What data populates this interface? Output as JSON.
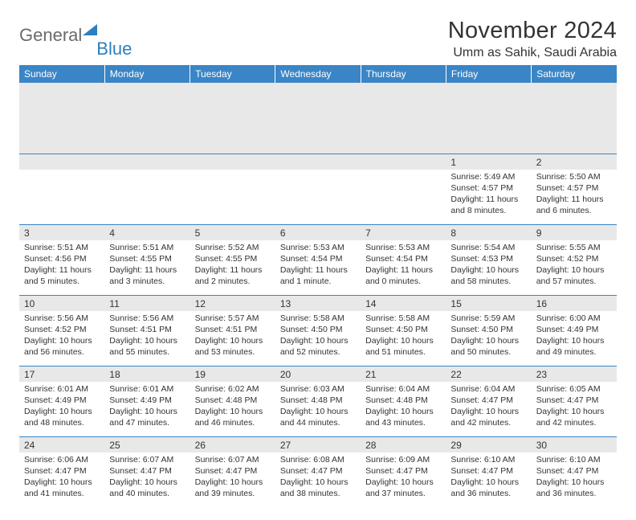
{
  "logo": {
    "word1": "General",
    "word2": "Blue"
  },
  "title": "November 2024",
  "location": "Umm as Sahik, Saudi Arabia",
  "weekdays": [
    "Sunday",
    "Monday",
    "Tuesday",
    "Wednesday",
    "Thursday",
    "Friday",
    "Saturday"
  ],
  "colors": {
    "header_bg": "#3a85c6",
    "header_fg": "#ffffff",
    "daynum_bg": "#e8e8e8",
    "rule": "#3a85c6",
    "text": "#333333",
    "logo_gray": "#6b6b6b",
    "logo_blue": "#2c7fc0"
  },
  "typography": {
    "title_fontsize": 29,
    "location_fontsize": 16,
    "weekday_fontsize": 12,
    "daynum_fontsize": 12,
    "body_fontsize": 10.5
  },
  "grid": {
    "leading_blanks": 5,
    "rows": 5,
    "cols": 7
  },
  "days": [
    {
      "n": 1,
      "sunrise": "5:49 AM",
      "sunset": "4:57 PM",
      "daylight": "11 hours and 8 minutes."
    },
    {
      "n": 2,
      "sunrise": "5:50 AM",
      "sunset": "4:57 PM",
      "daylight": "11 hours and 6 minutes."
    },
    {
      "n": 3,
      "sunrise": "5:51 AM",
      "sunset": "4:56 PM",
      "daylight": "11 hours and 5 minutes."
    },
    {
      "n": 4,
      "sunrise": "5:51 AM",
      "sunset": "4:55 PM",
      "daylight": "11 hours and 3 minutes."
    },
    {
      "n": 5,
      "sunrise": "5:52 AM",
      "sunset": "4:55 PM",
      "daylight": "11 hours and 2 minutes."
    },
    {
      "n": 6,
      "sunrise": "5:53 AM",
      "sunset": "4:54 PM",
      "daylight": "11 hours and 1 minute."
    },
    {
      "n": 7,
      "sunrise": "5:53 AM",
      "sunset": "4:54 PM",
      "daylight": "11 hours and 0 minutes."
    },
    {
      "n": 8,
      "sunrise": "5:54 AM",
      "sunset": "4:53 PM",
      "daylight": "10 hours and 58 minutes."
    },
    {
      "n": 9,
      "sunrise": "5:55 AM",
      "sunset": "4:52 PM",
      "daylight": "10 hours and 57 minutes."
    },
    {
      "n": 10,
      "sunrise": "5:56 AM",
      "sunset": "4:52 PM",
      "daylight": "10 hours and 56 minutes."
    },
    {
      "n": 11,
      "sunrise": "5:56 AM",
      "sunset": "4:51 PM",
      "daylight": "10 hours and 55 minutes."
    },
    {
      "n": 12,
      "sunrise": "5:57 AM",
      "sunset": "4:51 PM",
      "daylight": "10 hours and 53 minutes."
    },
    {
      "n": 13,
      "sunrise": "5:58 AM",
      "sunset": "4:50 PM",
      "daylight": "10 hours and 52 minutes."
    },
    {
      "n": 14,
      "sunrise": "5:58 AM",
      "sunset": "4:50 PM",
      "daylight": "10 hours and 51 minutes."
    },
    {
      "n": 15,
      "sunrise": "5:59 AM",
      "sunset": "4:50 PM",
      "daylight": "10 hours and 50 minutes."
    },
    {
      "n": 16,
      "sunrise": "6:00 AM",
      "sunset": "4:49 PM",
      "daylight": "10 hours and 49 minutes."
    },
    {
      "n": 17,
      "sunrise": "6:01 AM",
      "sunset": "4:49 PM",
      "daylight": "10 hours and 48 minutes."
    },
    {
      "n": 18,
      "sunrise": "6:01 AM",
      "sunset": "4:49 PM",
      "daylight": "10 hours and 47 minutes."
    },
    {
      "n": 19,
      "sunrise": "6:02 AM",
      "sunset": "4:48 PM",
      "daylight": "10 hours and 46 minutes."
    },
    {
      "n": 20,
      "sunrise": "6:03 AM",
      "sunset": "4:48 PM",
      "daylight": "10 hours and 44 minutes."
    },
    {
      "n": 21,
      "sunrise": "6:04 AM",
      "sunset": "4:48 PM",
      "daylight": "10 hours and 43 minutes."
    },
    {
      "n": 22,
      "sunrise": "6:04 AM",
      "sunset": "4:47 PM",
      "daylight": "10 hours and 42 minutes."
    },
    {
      "n": 23,
      "sunrise": "6:05 AM",
      "sunset": "4:47 PM",
      "daylight": "10 hours and 42 minutes."
    },
    {
      "n": 24,
      "sunrise": "6:06 AM",
      "sunset": "4:47 PM",
      "daylight": "10 hours and 41 minutes."
    },
    {
      "n": 25,
      "sunrise": "6:07 AM",
      "sunset": "4:47 PM",
      "daylight": "10 hours and 40 minutes."
    },
    {
      "n": 26,
      "sunrise": "6:07 AM",
      "sunset": "4:47 PM",
      "daylight": "10 hours and 39 minutes."
    },
    {
      "n": 27,
      "sunrise": "6:08 AM",
      "sunset": "4:47 PM",
      "daylight": "10 hours and 38 minutes."
    },
    {
      "n": 28,
      "sunrise": "6:09 AM",
      "sunset": "4:47 PM",
      "daylight": "10 hours and 37 minutes."
    },
    {
      "n": 29,
      "sunrise": "6:10 AM",
      "sunset": "4:47 PM",
      "daylight": "10 hours and 36 minutes."
    },
    {
      "n": 30,
      "sunrise": "6:10 AM",
      "sunset": "4:47 PM",
      "daylight": "10 hours and 36 minutes."
    }
  ],
  "labels": {
    "sunrise": "Sunrise:",
    "sunset": "Sunset:",
    "daylight": "Daylight:"
  }
}
